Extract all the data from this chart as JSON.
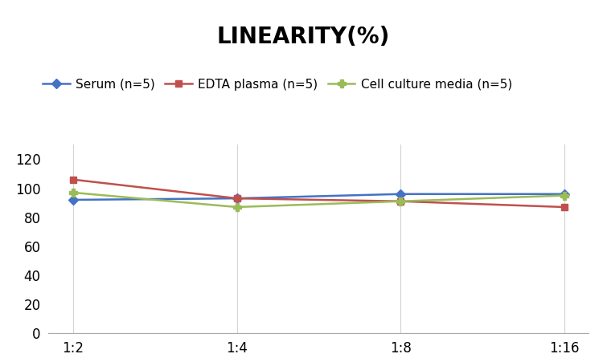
{
  "title": "LINEARITY(%)",
  "x_labels": [
    "1:2",
    "1:4",
    "1:8",
    "1:16"
  ],
  "x_positions": [
    0,
    1,
    2,
    3
  ],
  "series": [
    {
      "name": "Serum (n=5)",
      "values": [
        92,
        93,
        96,
        96
      ],
      "color": "#4472C4",
      "marker": "D",
      "markersize": 6
    },
    {
      "name": "EDTA plasma (n=5)",
      "values": [
        106,
        93,
        91,
        87
      ],
      "color": "#C0504D",
      "marker": "s",
      "markersize": 6
    },
    {
      "name": "Cell culture media (n=5)",
      "values": [
        97,
        87,
        91,
        95
      ],
      "color": "#9BBB59",
      "marker": "P",
      "markersize": 7
    }
  ],
  "ylim": [
    0,
    130
  ],
  "yticks": [
    0,
    20,
    40,
    60,
    80,
    100,
    120
  ],
  "title_fontsize": 20,
  "legend_fontsize": 11,
  "tick_fontsize": 12,
  "background_color": "#ffffff",
  "grid_color": "#d3d3d3"
}
